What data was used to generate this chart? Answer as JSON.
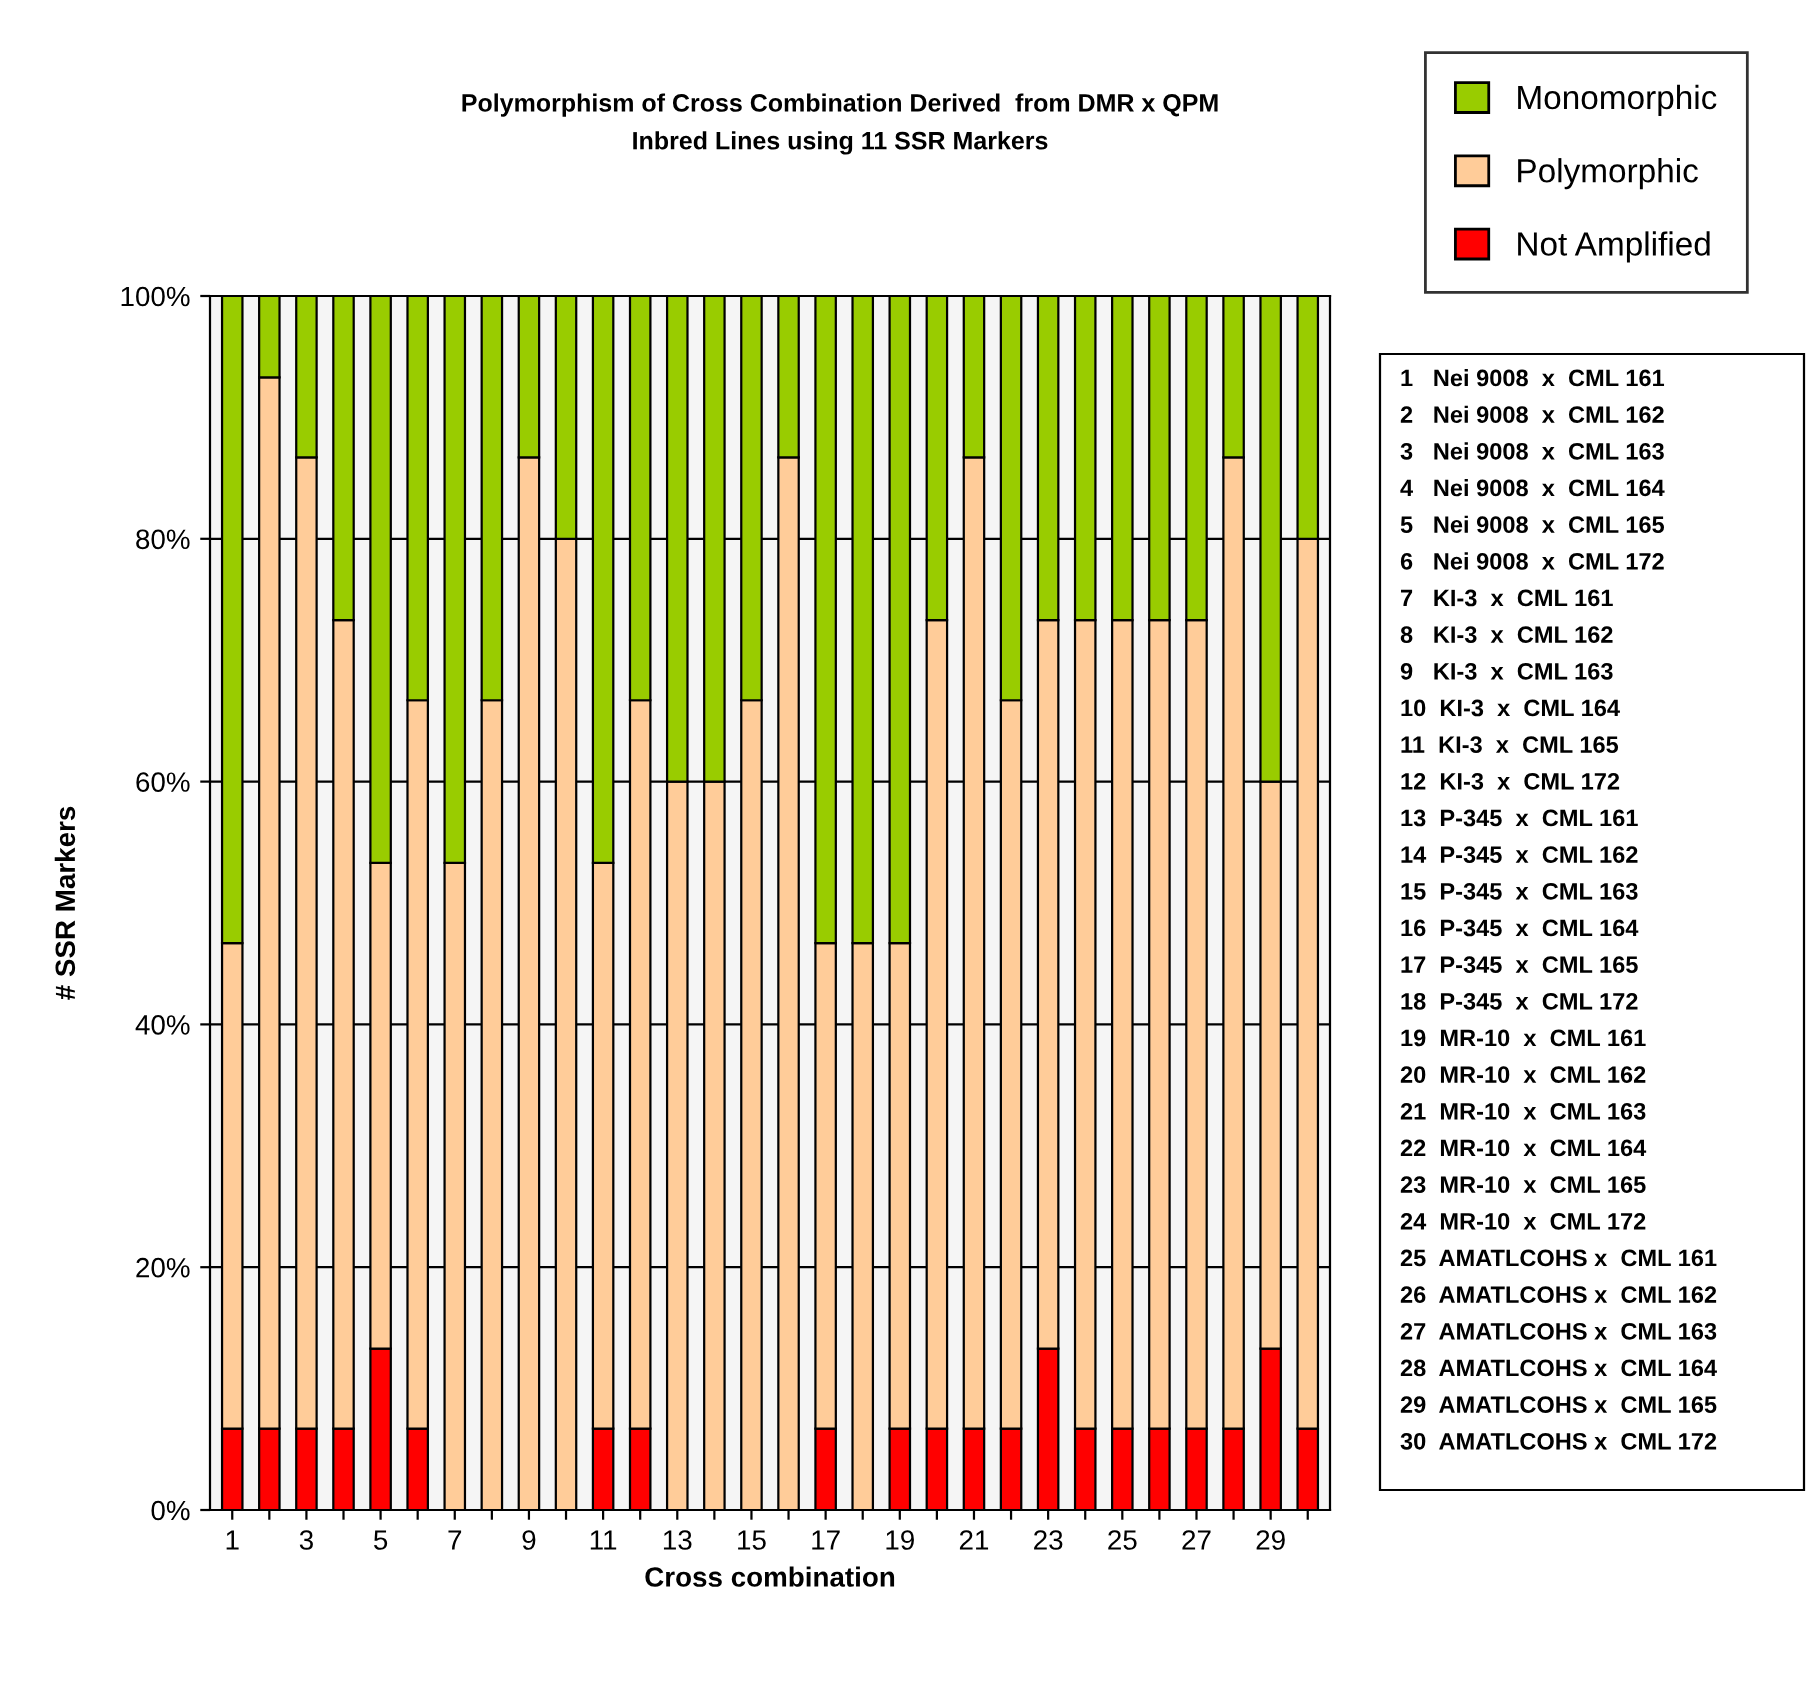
{
  "chart_data": {
    "type": "bar",
    "stacked": true,
    "title": "Polymorphism of Cross Combination Derived  from DMR x QPM\nInbred Lines using 11 SSR Markers",
    "xlabel": "Cross combination",
    "ylabel": "# SSR Markers",
    "categories": [
      "1",
      null,
      "3",
      null,
      "5",
      null,
      "7",
      null,
      "9",
      null,
      "11",
      null,
      "13",
      null,
      "15",
      null,
      "17",
      null,
      "19",
      null,
      "21",
      null,
      "23",
      null,
      "25",
      null,
      "27",
      null,
      "29",
      null
    ],
    "series": [
      {
        "name": "Not Amplified",
        "color": "#ff0000",
        "values": [
          6.7,
          6.7,
          6.7,
          6.7,
          13.3,
          6.7,
          0,
          0,
          0,
          0,
          6.7,
          6.7,
          0,
          0,
          0,
          0,
          6.7,
          0,
          6.7,
          6.7,
          6.7,
          6.7,
          13.3,
          6.7,
          6.7,
          6.7,
          6.7,
          6.7,
          13.3,
          6.7
        ]
      },
      {
        "name": "Polymorphic",
        "color": "#ffcc99",
        "values": [
          40,
          86.6,
          80,
          66.6,
          40,
          60,
          53.3,
          66.7,
          86.7,
          80,
          46.6,
          60,
          60,
          60,
          66.7,
          86.7,
          40,
          46.7,
          40,
          66.6,
          80,
          60,
          60,
          66.6,
          66.6,
          66.6,
          66.6,
          80,
          46.7,
          73.3
        ]
      },
      {
        "name": "Monomorphic",
        "color": "#99cc00",
        "values": [
          53.3,
          6.7,
          13.3,
          26.7,
          46.7,
          33.3,
          46.7,
          33.3,
          13.3,
          20,
          46.7,
          33.3,
          40,
          40,
          33.3,
          13.3,
          53.3,
          53.3,
          53.3,
          26.7,
          13.3,
          33.3,
          26.7,
          26.7,
          26.7,
          26.7,
          26.7,
          13.3,
          40,
          20
        ]
      }
    ],
    "ylim": [
      0,
      100
    ],
    "yticks": [
      {
        "value": 0,
        "label": "0%"
      },
      {
        "value": 20,
        "label": "20%"
      },
      {
        "value": 40,
        "label": "40%"
      },
      {
        "value": 60,
        "label": "60%"
      },
      {
        "value": 80,
        "label": "80%"
      },
      {
        "value": 100,
        "label": "100%"
      }
    ],
    "grid": "y",
    "legend": "top right",
    "annotations": [
      "1   Nei 9008  x  CML 161",
      "2   Nei 9008  x  CML 162",
      "3   Nei 9008  x  CML 163",
      "4   Nei 9008  x  CML 164",
      "5   Nei 9008  x  CML 165",
      "6   Nei 9008  x  CML 172",
      "7   KI-3  x  CML 161",
      "8   KI-3  x  CML 162",
      "9   KI-3  x  CML 163",
      "10  KI-3  x  CML 164",
      "11  KI-3  x  CML 165",
      "12  KI-3  x  CML 172",
      "13  P-345  x  CML 161",
      "14  P-345  x  CML 162",
      "15  P-345  x  CML 163",
      "16  P-345  x  CML 164",
      "17  P-345  x  CML 165",
      "18  P-345  x  CML 172",
      "19  MR-10  x  CML 161",
      "20  MR-10  x  CML 162",
      "21  MR-10  x  CML 163",
      "22  MR-10  x  CML 164",
      "23  MR-10  x  CML 165",
      "24  MR-10  x  CML 172",
      "25  AMATLCOHS x  CML 161",
      "26  AMATLCOHS x  CML 162",
      "27  AMATLCOHS x  CML 163",
      "28  AMATLCOHS x  CML 164",
      "29  AMATLCOHS x  CML 165",
      "30  AMATLCOHS x  CML 172"
    ]
  }
}
